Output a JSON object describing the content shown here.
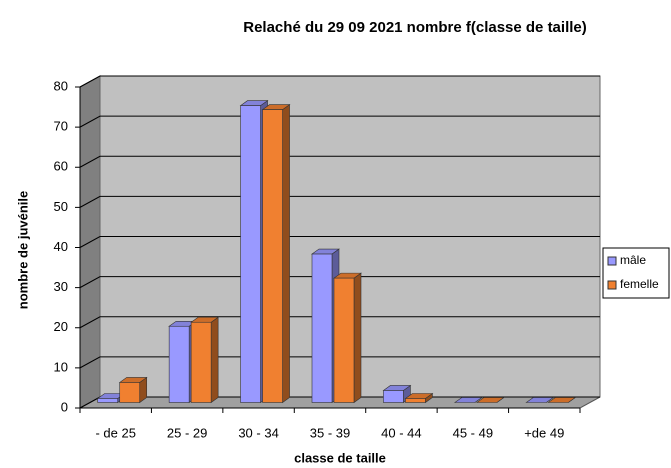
{
  "chart_data": {
    "type": "bar3d",
    "title": "Relaché du 29 09 2021 nombre f(classe de taille)",
    "xlabel": "classe de taille",
    "ylabel": "nombre de juvénile",
    "categories": [
      "- de 25",
      "25 - 29",
      "30 - 34",
      "35 - 39",
      "40 - 44",
      "45 - 49",
      "+de 49"
    ],
    "series": [
      {
        "name": "mâle",
        "color": "#9999ff",
        "values": [
          1,
          19,
          74,
          37,
          3,
          0,
          0
        ]
      },
      {
        "name": "femelle",
        "color": "#f08030",
        "values": [
          5,
          20,
          73,
          31,
          1,
          0,
          0
        ]
      }
    ],
    "ylim": [
      0,
      80
    ],
    "yticks": [
      0,
      10,
      20,
      30,
      40,
      50,
      60,
      70,
      80
    ],
    "grid": true,
    "legend": "right"
  }
}
